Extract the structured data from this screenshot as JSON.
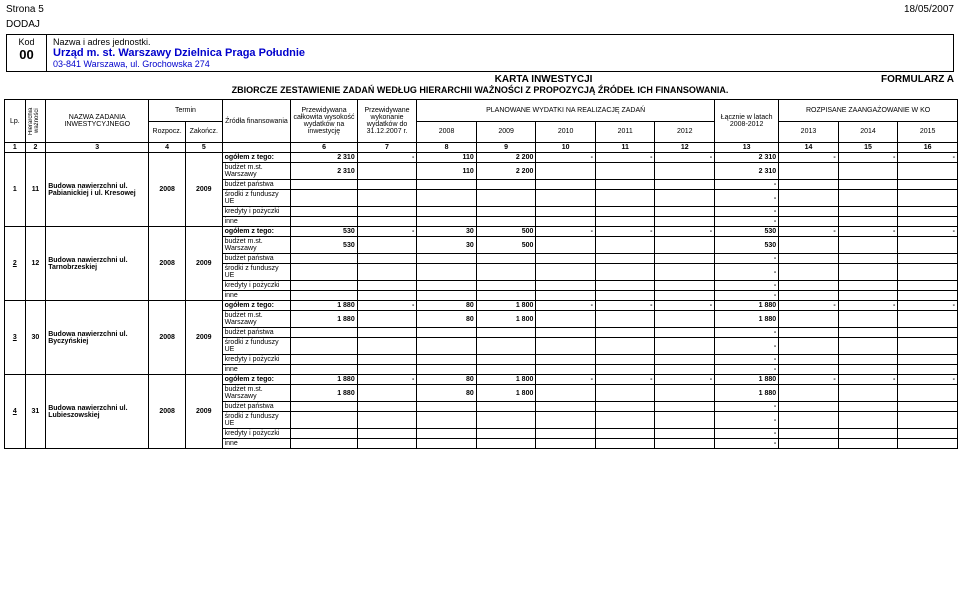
{
  "header": {
    "page_label": "Strona 5",
    "date": "18/05/2007",
    "doda_label": "DODAJ"
  },
  "kod": {
    "kod_label": "Kod",
    "kod_value": "00",
    "unit_label": "Nazwa i adres jednostki.",
    "unit_name": "Urząd m. st. Warszawy Dzielnica Praga Południe",
    "unit_addr": "03-841 Warszawa, ul. Grochowska 274"
  },
  "titles": {
    "karta": "KARTA INWESTYCJI",
    "formularz": "FORMULARZ A",
    "subtitle": "ZBIORCZE ZESTAWIENIE ZADAŃ WEDŁUG HIERARCHII WAŻNOŚCI Z PROPOZYCJĄ ŹRÓDEŁ ICH FINANSOWANIA."
  },
  "table_headers": {
    "lp": "Lp.",
    "hier": "Hierarchia ważności",
    "nazwa": "NAZWA ZADANIA INWESTYCYJNEGO",
    "termin": "Termin",
    "rozp": "Rozpocz.",
    "zakon": "Zakończ.",
    "zrodla": "Źródła finansowania",
    "przewid_wys": "Przewidywana całkowita wysokość wydatków na inwestycję",
    "przewid_wyk": "Przewidywane wykonanie wydatków do 31.12.2007 r.",
    "planowane": "PLANOWANE WYDATKI NA REALIZACJĘ ZADAŃ",
    "y2008": "2008",
    "y2009": "2009",
    "y2010": "2010",
    "y2011": "2011",
    "y2012": "2012",
    "laczne": "Łącznie w latach 2008-2012",
    "rozpisane": "ROZPISANE ZAANGAŻOWANIE W KO",
    "y2013": "2013",
    "y2014": "2014",
    "y2015": "2015"
  },
  "colnums": [
    "1",
    "2",
    "3",
    "4",
    "5",
    "",
    "6",
    "7",
    "8",
    "9",
    "10",
    "11",
    "12",
    "13",
    "14",
    "15",
    "16"
  ],
  "source_labels": {
    "ogolem": "ogółem z tego:",
    "budzet_mst": "budżet m.st. Warszawy",
    "budzet_panstwa": "budżet państwa",
    "srodki_ue": "środki z funduszy UE",
    "kredyty": "kredyty i pożyczki",
    "inne": "inne"
  },
  "rows": [
    {
      "lp": "1",
      "hier": "11",
      "nazwa": "Budowa nawierzchni ul. Pabianickiej i ul. Kresowej",
      "rozp": "2008",
      "zakon": "2009",
      "ogolem": {
        "c6": "2 310",
        "c7": "-",
        "c8": "110",
        "c9": "2 200",
        "c10": "-",
        "c11": "-",
        "c12": "-",
        "c13": "2 310",
        "c14": "-",
        "c15": "-",
        "c16": "-"
      },
      "budzet_mst": {
        "c6": "2 310",
        "c8": "110",
        "c9": "2 200",
        "c13": "2 310"
      }
    },
    {
      "lp": "2",
      "hier": "12",
      "lp_underline": true,
      "nazwa": "Budowa nawierzchni ul. Tarnobrzeskiej",
      "rozp": "2008",
      "zakon": "2009",
      "ogolem": {
        "c6": "530",
        "c7": "-",
        "c8": "30",
        "c9": "500",
        "c10": "-",
        "c11": "-",
        "c12": "-",
        "c13": "530",
        "c14": "-",
        "c15": "-",
        "c16": "-"
      },
      "budzet_mst": {
        "c6": "530",
        "c8": "30",
        "c9": "500",
        "c13": "530"
      }
    },
    {
      "lp": "3",
      "hier": "30",
      "lp_underline": true,
      "nazwa": "Budowa nawierzchni ul. Byczyńskiej",
      "rozp": "2008",
      "zakon": "2009",
      "ogolem": {
        "c6": "1 880",
        "c7": "-",
        "c8": "80",
        "c9": "1 800",
        "c10": "-",
        "c11": "-",
        "c12": "-",
        "c13": "1 880",
        "c14": "-",
        "c15": "-",
        "c16": "-"
      },
      "budzet_mst": {
        "c6": "1 880",
        "c8": "80",
        "c9": "1 800",
        "c13": "1 880"
      }
    },
    {
      "lp": "4",
      "hier": "31",
      "lp_underline": true,
      "nazwa": "Budowa nawierzchni ul. Lubieszowskiej",
      "rozp": "2008",
      "zakon": "2009",
      "ogolem": {
        "c6": "1 880",
        "c7": "-",
        "c8": "80",
        "c9": "1 800",
        "c10": "-",
        "c11": "-",
        "c12": "-",
        "c13": "1 880",
        "c14": "-",
        "c15": "-",
        "c16": "-"
      },
      "budzet_mst": {
        "c6": "1 880",
        "c8": "80",
        "c9": "1 800",
        "c13": "1 880"
      }
    }
  ],
  "dash": "-"
}
